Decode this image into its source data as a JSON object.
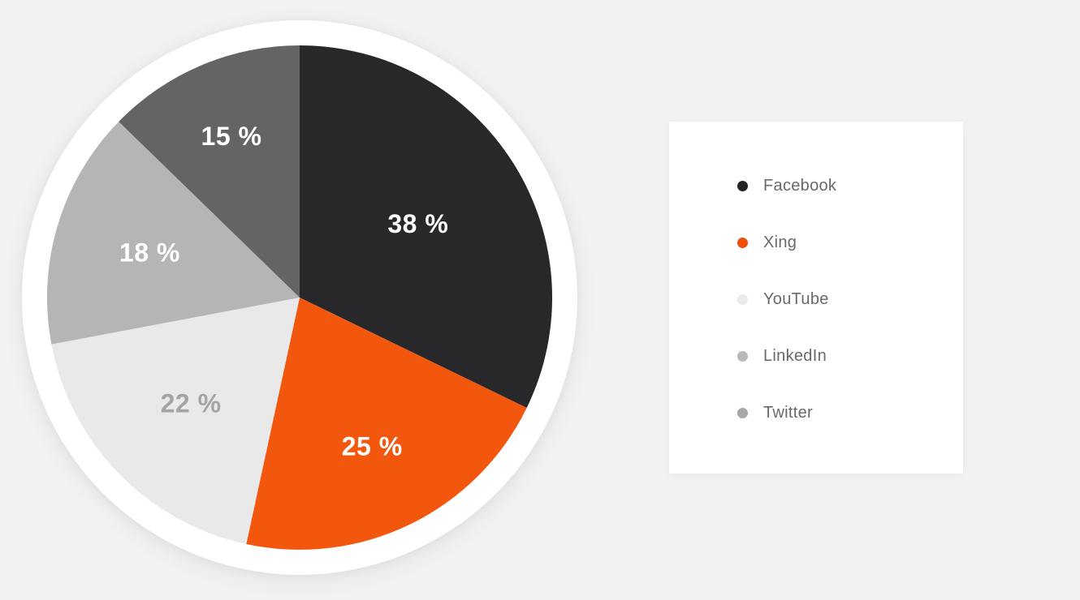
{
  "page": {
    "background_color": "#f2f2f2"
  },
  "chart_data": {
    "type": "pie",
    "categories": [
      "Facebook",
      "Xing",
      "YouTube",
      "LinkedIn",
      "Twitter"
    ],
    "values": [
      38,
      25,
      22,
      18,
      15
    ],
    "slice_labels": [
      "38 %",
      "25 %",
      "22 %",
      "18 %",
      "15 %"
    ],
    "slice_colors": [
      "#28282b",
      "#f2570d",
      "#e9e9e9",
      "#b5b5b5",
      "#646467"
    ],
    "slice_label_colors": [
      "#ffffff",
      "#ffffff",
      "#a4a4a4",
      "#ffffff",
      "#ffffff"
    ],
    "legend_dot_colors": [
      "#232326",
      "#ee500a",
      "#eaeaea",
      "#b9b9b9",
      "#a8a8a8"
    ],
    "start_angle_deg": 0,
    "direction": "clockwise",
    "title": "",
    "legend_position": "right",
    "legend_text_color": "#69696d",
    "ring_color": "#ffffff"
  }
}
